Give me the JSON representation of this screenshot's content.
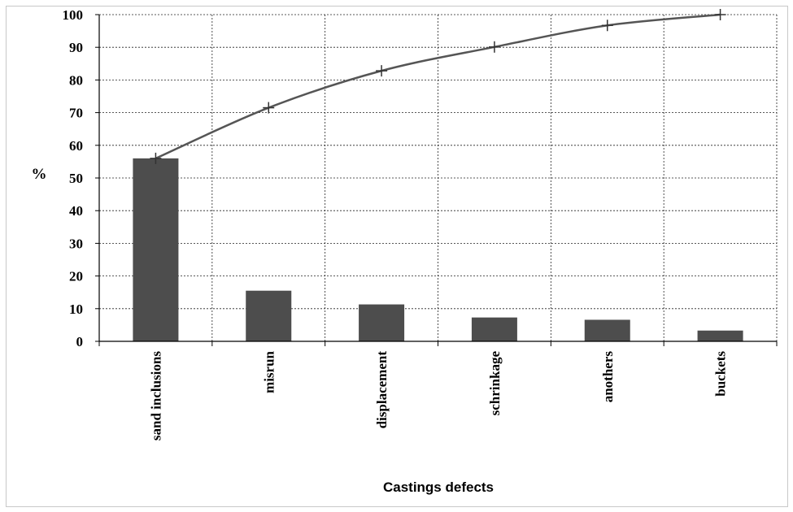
{
  "chart_data": {
    "type": "bar",
    "title": "",
    "xlabel": "Castings defects",
    "ylabel": "%",
    "ylim": [
      0,
      100
    ],
    "yticks": [
      0,
      10,
      20,
      30,
      40,
      50,
      60,
      70,
      80,
      90,
      100
    ],
    "grid": true,
    "legend": "none",
    "categories": [
      "sand inclusions",
      "misrun",
      "displacement",
      "schrinkage",
      "anothers",
      "buckets"
    ],
    "series": [
      {
        "type": "bar",
        "values": [
          56,
          15.5,
          11.3,
          7.3,
          6.6,
          3.3
        ],
        "color": "#4d4d4d"
      },
      {
        "type": "line",
        "values": [
          56,
          71.5,
          82.8,
          90.1,
          96.7,
          100
        ],
        "color": "#555555",
        "marker": "plus"
      }
    ]
  }
}
